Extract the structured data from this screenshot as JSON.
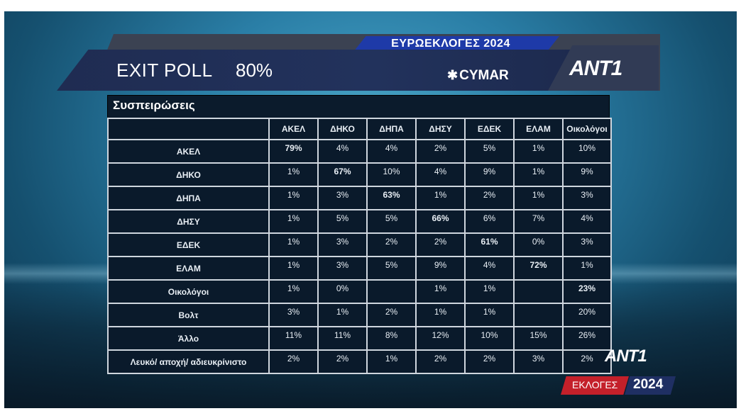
{
  "header": {
    "title": "EXIT POLL",
    "percent": "80%",
    "subtitle": "ΕΥΡΩΕΚΛΟΓΕΣ 2024",
    "pollster": "CYMAR",
    "channel_logo": "ANT1"
  },
  "panel": {
    "title": "Συσπειρώσεις"
  },
  "table": {
    "columns": [
      "ΑΚΕΛ",
      "ΔΗΚΟ",
      "ΔΗΠΑ",
      "ΔΗΣΥ",
      "ΕΔΕΚ",
      "ΕΛΑΜ",
      "Οικολόγοι"
    ],
    "rows": [
      {
        "label": "ΑΚΕΛ",
        "values": [
          "79%",
          "4%",
          "4%",
          "2%",
          "5%",
          "1%",
          "10%"
        ]
      },
      {
        "label": "ΔΗΚΟ",
        "values": [
          "1%",
          "67%",
          "10%",
          "4%",
          "9%",
          "1%",
          "9%"
        ]
      },
      {
        "label": "ΔΗΠΑ",
        "values": [
          "1%",
          "3%",
          "63%",
          "1%",
          "2%",
          "1%",
          "3%"
        ]
      },
      {
        "label": "ΔΗΣΥ",
        "values": [
          "1%",
          "5%",
          "5%",
          "66%",
          "6%",
          "7%",
          "4%"
        ]
      },
      {
        "label": "ΕΔΕΚ",
        "values": [
          "1%",
          "3%",
          "2%",
          "2%",
          "61%",
          "0%",
          "3%"
        ]
      },
      {
        "label": "ΕΛΑΜ",
        "values": [
          "1%",
          "3%",
          "5%",
          "9%",
          "4%",
          "72%",
          "1%"
        ]
      },
      {
        "label": "Οικολόγοι",
        "values": [
          "1%",
          "0%",
          "",
          "1%",
          "1%",
          "",
          "23%"
        ]
      },
      {
        "label": "Βολτ",
        "values": [
          "3%",
          "1%",
          "2%",
          "1%",
          "1%",
          "",
          "20%"
        ]
      },
      {
        "label": "Άλλο",
        "values": [
          "11%",
          "11%",
          "8%",
          "12%",
          "10%",
          "15%",
          "26%"
        ]
      },
      {
        "label": "Λευκό/ αποχή/ αδιευκρίνιστο",
        "values": [
          "2%",
          "2%",
          "1%",
          "2%",
          "2%",
          "3%",
          "2%"
        ]
      }
    ],
    "highlight_colors": {
      "ΑΚΕΛ": "#e5342b",
      "ΔΗΚΟ": "#e8a915",
      "ΔΗΠΑ": "#5fb33e",
      "ΔΗΣΥ": "#3aa0e0",
      "ΕΔΕΚ": "#2f9a3a",
      "ΕΛΑΜ": "#3c7cc4",
      "Οικολόγοι": "#9fe07a"
    }
  },
  "footer": {
    "channel_logo": "ANT1",
    "elections_label": "ΕΚΛΟΓΕΣ",
    "elections_year": "2024"
  },
  "colors": {
    "banner": "#22325c",
    "subtitle_tab": "#1e3aa8",
    "panel": "#0a1a2b",
    "footer_red": "#c4202a"
  }
}
